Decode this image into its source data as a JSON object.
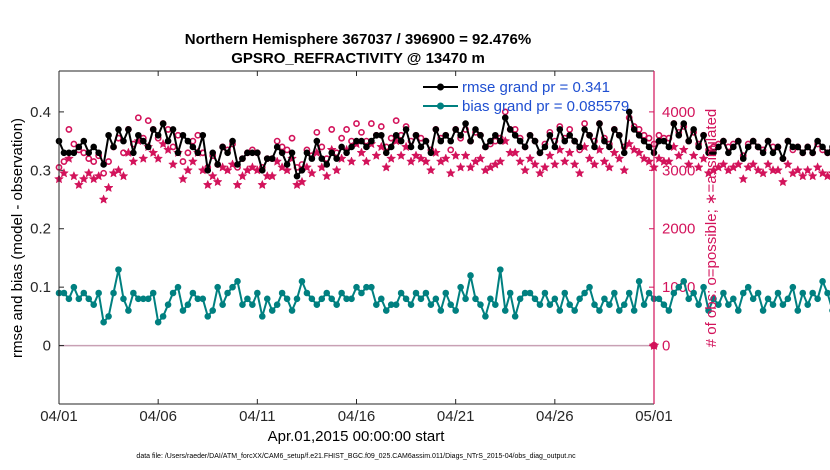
{
  "chart_data": {
    "type": "line",
    "title": "Northern Hemisphere 367037 / 396900 = 92.476%",
    "subtitle": "GPSRO_REFRACTIVITY @ 13470 m",
    "xlabel": "Apr.01,2015 00:00:00 start",
    "ylabel_left": "rmse and bias (model - observation)",
    "ylabel_right": "# of obs: o=possible; ∗=assimilated",
    "xlim": [
      0,
      30
    ],
    "ylim_left": [
      -0.1,
      0.47
    ],
    "ylim_right": [
      -1000,
      4700
    ],
    "x_ticks": [
      0,
      5,
      10,
      15,
      20,
      25,
      30
    ],
    "x_tick_labels": [
      "04/01",
      "04/06",
      "04/11",
      "04/16",
      "04/21",
      "04/26",
      "05/01"
    ],
    "y_ticks_left": [
      0,
      0.1,
      0.2,
      0.3,
      0.4
    ],
    "y_tick_labels_left": [
      "0",
      "0.1",
      "0.2",
      "0.3",
      "0.4"
    ],
    "y_ticks_right": [
      0,
      1000,
      2000,
      3000,
      4000
    ],
    "y_tick_labels_right": [
      "0",
      "1000",
      "2000",
      "3000",
      "4000"
    ],
    "zero_line_right_marker": 0,
    "x_step_days": 0.25,
    "legend": [
      {
        "label": "rmse grand pr = 0.341",
        "color": "#000000"
      },
      {
        "label": "bias grand pr = 0.085579",
        "color": "#008080"
      }
    ],
    "legend_placement": "top-right",
    "series": [
      {
        "name": "rmse",
        "axis": "left",
        "color": "#000000",
        "marker": "filled-circle",
        "values": [
          0.35,
          0.33,
          0.33,
          0.33,
          0.34,
          0.35,
          0.33,
          0.34,
          0.33,
          0.31,
          0.36,
          0.34,
          0.37,
          0.35,
          0.37,
          0.33,
          0.36,
          0.35,
          0.34,
          0.37,
          0.36,
          0.38,
          0.35,
          0.37,
          0.33,
          0.36,
          0.35,
          0.34,
          0.33,
          0.36,
          0.3,
          0.33,
          0.31,
          0.34,
          0.33,
          0.35,
          0.31,
          0.32,
          0.33,
          0.33,
          0.33,
          0.3,
          0.32,
          0.32,
          0.34,
          0.33,
          0.31,
          0.33,
          0.29,
          0.3,
          0.33,
          0.32,
          0.35,
          0.32,
          0.31,
          0.33,
          0.32,
          0.34,
          0.33,
          0.34,
          0.35,
          0.35,
          0.34,
          0.35,
          0.36,
          0.36,
          0.33,
          0.34,
          0.36,
          0.35,
          0.37,
          0.34,
          0.36,
          0.34,
          0.35,
          0.33,
          0.37,
          0.35,
          0.36,
          0.35,
          0.37,
          0.36,
          0.38,
          0.35,
          0.37,
          0.36,
          0.34,
          0.35,
          0.36,
          0.35,
          0.39,
          0.37,
          0.36,
          0.35,
          0.34,
          0.36,
          0.35,
          0.33,
          0.34,
          0.36,
          0.34,
          0.37,
          0.35,
          0.36,
          0.35,
          0.34,
          0.37,
          0.36,
          0.34,
          0.38,
          0.35,
          0.34,
          0.37,
          0.36,
          0.33,
          0.4,
          0.37,
          0.36,
          0.35,
          0.34,
          0.33,
          0.35,
          0.35,
          0.34,
          0.38,
          0.36,
          0.38,
          0.35,
          0.37,
          0.34,
          0.36,
          0.33,
          0.33,
          0.34,
          0.35,
          0.33,
          0.34,
          0.35,
          0.32,
          0.34,
          0.35,
          0.34,
          0.33,
          0.35,
          0.33,
          0.34,
          0.32,
          0.35,
          0.34,
          0.34,
          0.33,
          0.34,
          0.33,
          0.35,
          0.34,
          0.33,
          0.34,
          0.34,
          0.33,
          0.34,
          0.34,
          0.35,
          0.34,
          0.33,
          0.33,
          0.34,
          0.33,
          0.34,
          0.33,
          0.33,
          0.31,
          0.32,
          0.34,
          0.32,
          0.3,
          0.31,
          0.28,
          0.3,
          0.32,
          0.3,
          0.31,
          0.34,
          0.3,
          0.29
        ]
      },
      {
        "name": "bias",
        "axis": "left",
        "color": "#008080",
        "marker": "filled-circle",
        "values": [
          0.09,
          0.09,
          0.08,
          0.1,
          0.08,
          0.09,
          0.08,
          0.07,
          0.09,
          0.04,
          0.05,
          0.09,
          0.13,
          0.08,
          0.06,
          0.09,
          0.08,
          0.08,
          0.08,
          0.09,
          0.04,
          0.05,
          0.07,
          0.09,
          0.1,
          0.06,
          0.07,
          0.09,
          0.08,
          0.08,
          0.05,
          0.06,
          0.1,
          0.07,
          0.09,
          0.1,
          0.11,
          0.07,
          0.08,
          0.07,
          0.09,
          0.05,
          0.08,
          0.06,
          0.07,
          0.09,
          0.08,
          0.06,
          0.08,
          0.11,
          0.09,
          0.08,
          0.07,
          0.08,
          0.09,
          0.08,
          0.07,
          0.09,
          0.08,
          0.08,
          0.1,
          0.09,
          0.1,
          0.1,
          0.07,
          0.08,
          0.06,
          0.07,
          0.07,
          0.09,
          0.08,
          0.07,
          0.09,
          0.08,
          0.09,
          0.07,
          0.08,
          0.06,
          0.09,
          0.07,
          0.06,
          0.1,
          0.08,
          0.12,
          0.08,
          0.07,
          0.05,
          0.08,
          0.07,
          0.13,
          0.06,
          0.09,
          0.05,
          0.08,
          0.09,
          0.09,
          0.08,
          0.07,
          0.09,
          0.07,
          0.08,
          0.06,
          0.09,
          0.07,
          0.06,
          0.08,
          0.09,
          0.1,
          0.07,
          0.06,
          0.08,
          0.07,
          0.09,
          0.06,
          0.07,
          0.09,
          0.06,
          0.11,
          0.07,
          0.09,
          0.08,
          0.08,
          0.07,
          0.06,
          0.09,
          0.1,
          0.11,
          0.08,
          0.09,
          0.07,
          0.1,
          0.06,
          0.08,
          0.07,
          0.09,
          0.07,
          0.08,
          0.06,
          0.09,
          0.1,
          0.08,
          0.09,
          0.06,
          0.08,
          0.07,
          0.09,
          0.07,
          0.08,
          0.1,
          0.06,
          0.09,
          0.07,
          0.09,
          0.08,
          0.11,
          0.09,
          0.06,
          0.09,
          0.13,
          0.08,
          0.1,
          0.07,
          0.12,
          0.09,
          0.1,
          0.08,
          0.09,
          0.08,
          0.07,
          0.09,
          0.06,
          0.09,
          0.08,
          0.07,
          0.06,
          0.05,
          0.07,
          0.06,
          0.05,
          0.04,
          0.03,
          0.09,
          0.11,
          0.11
        ]
      },
      {
        "name": "obs possible",
        "axis": "right",
        "color": "#d3135b",
        "marker": "open-circle",
        "values": [
          3050,
          3150,
          3700,
          3450,
          3350,
          3300,
          3200,
          3150,
          3250,
          2950,
          3150,
          3400,
          3550,
          3300,
          3700,
          3450,
          3900,
          3550,
          3850,
          3700,
          3550,
          3800,
          3700,
          3400,
          3600,
          3150,
          3300,
          3500,
          3600,
          3300,
          3050,
          3250,
          3100,
          3400,
          3350,
          3450,
          3050,
          3200,
          3300,
          3350,
          3300,
          3050,
          3200,
          3200,
          3500,
          3400,
          3350,
          3550,
          3050,
          3100,
          3350,
          3250,
          3650,
          3400,
          3200,
          3700,
          3300,
          3550,
          3700,
          3500,
          3800,
          3650,
          3500,
          3800,
          3600,
          3750,
          3400,
          3550,
          3850,
          3600,
          3750,
          3500,
          3600,
          3550,
          3500,
          3350,
          3700,
          3550,
          3600,
          3350,
          3700,
          3550,
          3700,
          3500,
          3650,
          3600,
          3400,
          3450,
          3500,
          3550,
          4000,
          3700,
          3700,
          3550,
          3400,
          3600,
          3500,
          3300,
          3450,
          3650,
          3500,
          3750,
          3550,
          3700,
          3500,
          3350,
          3800,
          3600,
          3500,
          3800,
          3550,
          3450,
          3700,
          3600,
          3400,
          3900,
          3750,
          3700,
          3600,
          3550,
          3450,
          3600,
          3550,
          3550,
          3800,
          3650,
          3750,
          3500,
          3650,
          3450,
          3600,
          3350,
          3400,
          3450,
          3500,
          3400,
          3450,
          3500,
          3250,
          3450,
          3500,
          3400,
          3350,
          3500,
          3400,
          3400,
          3200,
          3500,
          3350,
          3400,
          3300,
          3400,
          3300,
          3450,
          3350,
          3300,
          3350,
          3350,
          3250,
          3300,
          3300,
          3400,
          3300,
          3200,
          3200,
          3300,
          3250,
          3300,
          3250,
          3200,
          2900,
          3100,
          3350,
          3000,
          2700,
          2850,
          2400,
          2250,
          2550,
          2200,
          2600,
          3200,
          3100,
          2850
        ]
      },
      {
        "name": "obs assimilated",
        "axis": "right",
        "color": "#d3135b",
        "marker": "star",
        "values": [
          2850,
          2950,
          3200,
          2900,
          2750,
          2850,
          2950,
          2850,
          2900,
          2500,
          2700,
          2950,
          3000,
          2900,
          3300,
          3150,
          3500,
          3200,
          3400,
          3300,
          3200,
          3450,
          3350,
          3100,
          3300,
          2850,
          3000,
          3150,
          3300,
          3000,
          2750,
          2900,
          2800,
          3050,
          3000,
          3100,
          2750,
          2900,
          3000,
          3050,
          3000,
          2750,
          2900,
          2900,
          3150,
          3050,
          3000,
          3200,
          2750,
          2800,
          3050,
          2950,
          3300,
          3050,
          2900,
          3350,
          3000,
          3200,
          3350,
          3150,
          3450,
          3300,
          3150,
          3450,
          3250,
          3400,
          3050,
          3200,
          3500,
          3250,
          3400,
          3150,
          3250,
          3200,
          3150,
          3000,
          3300,
          3150,
          3200,
          2950,
          3250,
          3050,
          3250,
          3050,
          3150,
          3200,
          3000,
          3050,
          3100,
          3150,
          3500,
          3300,
          3300,
          3150,
          3000,
          3200,
          3100,
          2950,
          3050,
          3250,
          3100,
          3350,
          3150,
          3300,
          3100,
          2950,
          3400,
          3200,
          3100,
          3350,
          3150,
          3050,
          3300,
          3200,
          3000,
          3450,
          3350,
          3300,
          3200,
          3150,
          3050,
          3200,
          3150,
          3150,
          3400,
          3250,
          3350,
          3100,
          3250,
          3050,
          3200,
          2950,
          3000,
          3050,
          3100,
          3000,
          3050,
          3100,
          2850,
          3050,
          3100,
          3000,
          2950,
          3100,
          3000,
          3000,
          2800,
          3100,
          2950,
          3000,
          2900,
          3000,
          2900,
          3050,
          2950,
          2900,
          2950,
          2950,
          2850,
          2900,
          2900,
          3000,
          2900,
          2800,
          2800,
          2900,
          2850,
          2900,
          2850,
          2800,
          2500,
          2700,
          2950,
          2600,
          2300,
          2450,
          2050,
          1950,
          2250,
          1900,
          2300,
          2950,
          2900,
          2850
        ]
      }
    ]
  },
  "footnote": "data file: /Users/raeder/DAI/ATM_forcXX/CAM6_setup/f.e21.FHIST_BGC.f09_025.CAM6assim.011/Diags_NTrS_2015-04/obs_diag_output.nc"
}
